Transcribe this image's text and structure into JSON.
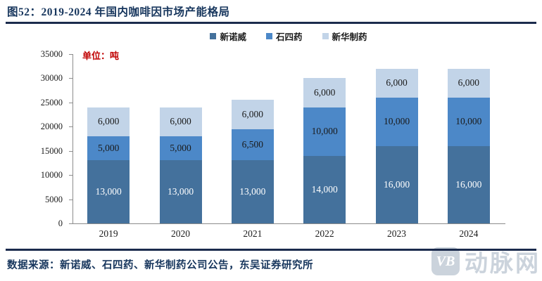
{
  "title": "图52：2019-2024 年国内咖啡因市场产能格局",
  "unit_label": "单位：吨",
  "source": "数据来源：新诺威、石四药、新华制药公司公告，东吴证券研究所",
  "watermark": {
    "logo_text": "VB",
    "brand": "动脉网"
  },
  "colors": {
    "accent_navy": "#17365D",
    "divider": "#1B2B4D",
    "unit_red": "#C00000",
    "axis_gray": "#8c8c8c",
    "watermark_gray": "#CBD3DC"
  },
  "chart_data": {
    "type": "bar",
    "stacked": true,
    "title": "2019-2024 年国内咖啡因市场产能格局",
    "xlabel": "",
    "ylabel": "单位：吨",
    "categories": [
      "2019",
      "2020",
      "2021",
      "2022",
      "2023",
      "2024"
    ],
    "series": [
      {
        "name": "新诺威",
        "color": "#44719C",
        "label_color": "#ffffff",
        "values": [
          13000,
          13000,
          13000,
          14000,
          16000,
          16000
        ]
      },
      {
        "name": "石四药",
        "color": "#4C88C8",
        "label_color": "#1a1a1a",
        "values": [
          5000,
          5000,
          6500,
          10000,
          10000,
          10000
        ]
      },
      {
        "name": "新华制药",
        "color": "#C2D4E8",
        "label_color": "#1a1a1a",
        "values": [
          6000,
          6000,
          6000,
          6000,
          6000,
          6000
        ]
      }
    ],
    "totals": [
      24000,
      24000,
      25500,
      30000,
      32000,
      32000
    ],
    "ylim": [
      0,
      35000
    ],
    "ytick_step": 5000,
    "grid": false,
    "legend_position": "top",
    "data_labels": true
  }
}
